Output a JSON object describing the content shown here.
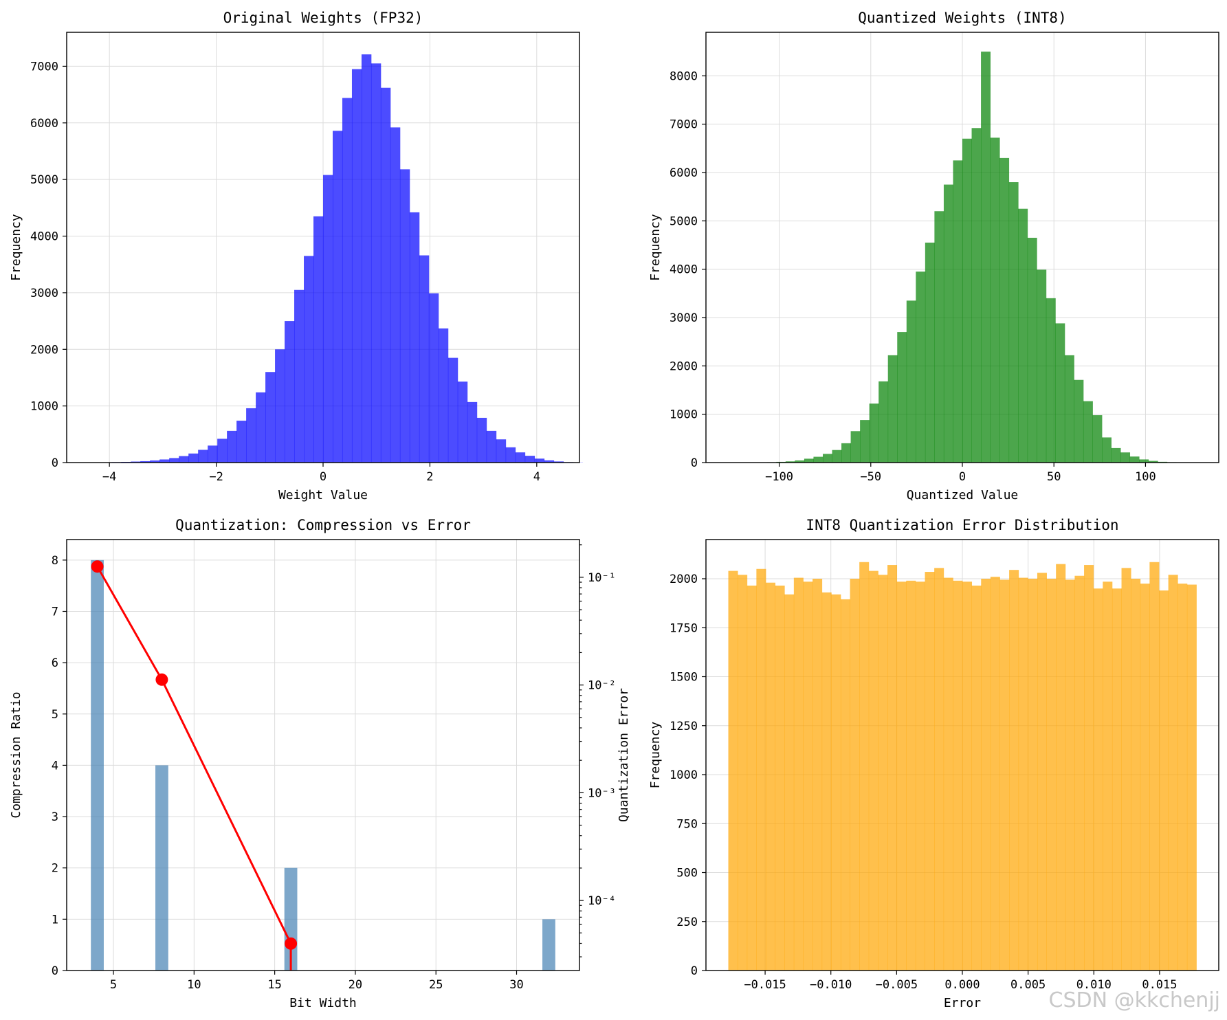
{
  "watermark": "CSDN @kkchenjj",
  "chart_data": [
    {
      "id": "fp32",
      "type": "bar",
      "title": "Original Weights (FP32)",
      "xlabel": "Weight Value",
      "ylabel": "Frequency",
      "xlim": [
        -4.8,
        4.8
      ],
      "ylim": [
        0,
        7600
      ],
      "xticks": [
        -4,
        -2,
        0,
        2,
        4
      ],
      "xtick_labels": [
        "−4",
        "−2",
        "0",
        "2",
        "4"
      ],
      "yticks": [
        0,
        1000,
        2000,
        3000,
        4000,
        5000,
        6000,
        7000
      ],
      "ytick_labels": [
        "0",
        "1000",
        "2000",
        "3000",
        "4000",
        "5000",
        "6000",
        "7000"
      ],
      "grid": true,
      "color": "#0000ff",
      "opacity": 0.7,
      "bin_start": -4.5,
      "bin_width": 0.18,
      "values": [
        2,
        3,
        5,
        8,
        12,
        18,
        25,
        38,
        55,
        80,
        115,
        160,
        225,
        300,
        420,
        560,
        740,
        960,
        1240,
        1600,
        2000,
        2500,
        3050,
        3650,
        4350,
        5080,
        5860,
        6440,
        6950,
        7210,
        7050,
        6620,
        5920,
        5180,
        4420,
        3660,
        2990,
        2370,
        1850,
        1430,
        1070,
        790,
        560,
        410,
        270,
        180,
        120,
        70,
        40,
        20,
        8,
        3
      ]
    },
    {
      "id": "int8",
      "type": "bar",
      "title": "Quantized Weights (INT8)",
      "xlabel": "Quantized Value",
      "ylabel": "Frequency",
      "xlim": [
        -140,
        140
      ],
      "ylim": [
        0,
        8900
      ],
      "xticks": [
        -100,
        -50,
        0,
        50,
        100
      ],
      "xtick_labels": [
        "−100",
        "−50",
        "0",
        "50",
        "100"
      ],
      "yticks": [
        0,
        1000,
        2000,
        3000,
        4000,
        5000,
        6000,
        7000,
        8000
      ],
      "ytick_labels": [
        "0",
        "1000",
        "2000",
        "3000",
        "4000",
        "5000",
        "6000",
        "7000",
        "8000"
      ],
      "grid": true,
      "color": "#008000",
      "opacity": 0.7,
      "bin_start": -127,
      "bin_width": 5.08,
      "values": [
        1,
        2,
        3,
        5,
        8,
        15,
        25,
        45,
        80,
        120,
        180,
        260,
        400,
        650,
        880,
        1220,
        1680,
        2220,
        2700,
        3350,
        3950,
        4550,
        5200,
        5750,
        6250,
        6700,
        6920,
        8500,
        6720,
        6300,
        5800,
        5250,
        4650,
        3990,
        3400,
        2880,
        2220,
        1710,
        1270,
        980,
        520,
        300,
        210,
        125,
        65,
        35,
        16,
        8,
        4,
        2
      ]
    },
    {
      "id": "compression",
      "type": "bar",
      "title": "Quantization: Compression vs Error",
      "xlabel": "Bit Width",
      "ylabel": "Compression Ratio",
      "y2label": "Quantization Error",
      "y2scale": "log",
      "xlim": [
        2.1,
        33.9
      ],
      "ylim": [
        0,
        8.4
      ],
      "y2lim_log10": [
        -4.65,
        -0.65
      ],
      "xticks": [
        5,
        10,
        15,
        20,
        25,
        30
      ],
      "xtick_labels": [
        "5",
        "10",
        "15",
        "20",
        "25",
        "30"
      ],
      "yticks": [
        0,
        1,
        2,
        3,
        4,
        5,
        6,
        7,
        8
      ],
      "ytick_labels": [
        "0",
        "1",
        "2",
        "3",
        "4",
        "5",
        "6",
        "7",
        "8"
      ],
      "y2ticks_log10": [
        -1,
        -2,
        -3,
        -4
      ],
      "y2tick_labels": [
        "10⁻¹",
        "10⁻²",
        "10⁻³",
        "10⁻⁴"
      ],
      "grid": true,
      "bar_color": "#4682b4",
      "line_color": "#ff0000",
      "bit_widths": [
        4,
        8,
        16,
        32
      ],
      "compression_ratio": [
        8,
        4,
        2,
        1
      ],
      "error_points": [
        {
          "x": 4,
          "log10_error": -0.9
        },
        {
          "x": 8,
          "log10_error": -1.95
        },
        {
          "x": 16,
          "log10_error": -4.4
        }
      ]
    },
    {
      "id": "error",
      "type": "bar",
      "title": "INT8 Quantization Error Distribution",
      "xlabel": "Error",
      "ylabel": "Frequency",
      "xlim": [
        -0.0195,
        0.0195
      ],
      "ylim": [
        0,
        2200
      ],
      "xticks": [
        -0.015,
        -0.01,
        -0.005,
        0,
        0.005,
        0.01,
        0.015
      ],
      "xtick_labels": [
        "−0.015",
        "−0.010",
        "−0.005",
        "0.000",
        "0.005",
        "0.010",
        "0.015"
      ],
      "yticks": [
        0,
        250,
        500,
        750,
        1000,
        1250,
        1500,
        1750,
        2000
      ],
      "ytick_labels": [
        "0",
        "250",
        "500",
        "750",
        "1000",
        "1250",
        "1500",
        "1750",
        "2000"
      ],
      "grid": true,
      "color": "#ffa500",
      "opacity": 0.7,
      "bin_start": -0.0178,
      "bin_width": 0.000712,
      "values": [
        2040,
        2020,
        1965,
        2050,
        1980,
        1965,
        1920,
        2005,
        1985,
        2000,
        1930,
        1920,
        1895,
        2000,
        2085,
        2040,
        2020,
        2070,
        1985,
        1990,
        1985,
        2035,
        2055,
        2005,
        1990,
        1985,
        1965,
        2000,
        2010,
        1995,
        2045,
        2005,
        2000,
        2030,
        2000,
        2075,
        1995,
        2015,
        2070,
        1950,
        1985,
        1950,
        2055,
        2000,
        1975,
        2085,
        1940,
        2020,
        1975,
        1970
      ]
    }
  ]
}
